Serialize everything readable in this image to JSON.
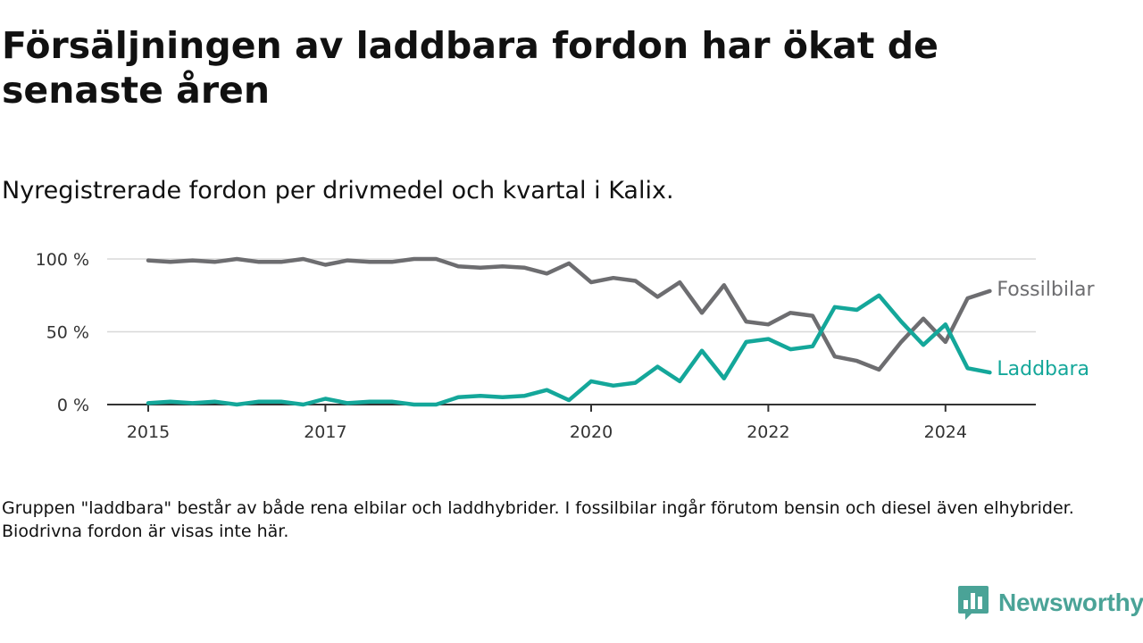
{
  "title": "Försäljningen av laddbara fordon har ökat de senaste åren",
  "subtitle": "Nyregistrerade fordon per drivmedel och kvartal i Kalix.",
  "footnote": "Gruppen \"laddbara\" består av både rena elbilar och laddhybrider. I fossilbilar ingår förutom bensin och diesel även elhybrider. Biodrivna fordon är visas inte här.",
  "brand": {
    "name": "Newsworthy",
    "icon": "newsworthy-logo-icon",
    "color": "#4aa397"
  },
  "chart_data": {
    "type": "line",
    "title": "Nyregistrerade fordon per drivmedel och kvartal i Kalix.",
    "xlabel": "",
    "ylabel": "",
    "ylim": [
      0,
      100
    ],
    "xlim": [
      2015,
      2024.875
    ],
    "y_ticks": [
      0,
      50,
      100
    ],
    "y_tick_labels": [
      "0 %",
      "50 %",
      "100 %"
    ],
    "x_ticks": [
      2015,
      2017,
      2020,
      2022,
      2024
    ],
    "x_tick_labels": [
      "2015",
      "2017",
      "2020",
      "2022",
      "2024"
    ],
    "grid": "horizontal",
    "legend": "inline at line ends",
    "x": [
      2015,
      2015.25,
      2015.5,
      2015.75,
      2016,
      2016.25,
      2016.5,
      2016.75,
      2017,
      2017.25,
      2017.5,
      2017.75,
      2018,
      2018.25,
      2018.5,
      2018.75,
      2019,
      2019.25,
      2019.5,
      2019.75,
      2020,
      2020.25,
      2020.5,
      2020.75,
      2021,
      2021.25,
      2021.5,
      2021.75,
      2022,
      2022.25,
      2022.5,
      2022.75,
      2023,
      2023.25,
      2023.5,
      2023.75,
      2024,
      2024.25,
      2024.5
    ],
    "series": [
      {
        "name": "Fossilbilar",
        "color": "#6d6d70",
        "values": [
          99,
          98,
          99,
          98,
          100,
          98,
          98,
          100,
          96,
          99,
          98,
          98,
          100,
          100,
          95,
          94,
          95,
          94,
          90,
          97,
          84,
          87,
          85,
          74,
          84,
          63,
          82,
          57,
          55,
          63,
          61,
          33,
          30,
          24,
          43,
          59,
          43,
          73,
          78
        ]
      },
      {
        "name": "Laddbara",
        "color": "#14a79a",
        "values": [
          1,
          2,
          1,
          2,
          0,
          2,
          2,
          0,
          4,
          1,
          2,
          2,
          0,
          0,
          5,
          6,
          5,
          6,
          10,
          3,
          16,
          13,
          15,
          26,
          16,
          37,
          18,
          43,
          45,
          38,
          40,
          67,
          65,
          75,
          57,
          41,
          55,
          25,
          22
        ]
      }
    ]
  }
}
